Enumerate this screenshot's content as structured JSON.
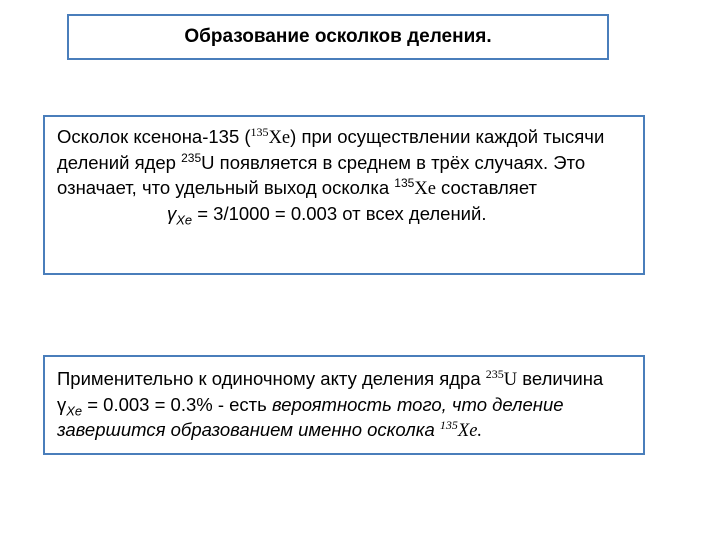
{
  "title": {
    "text": "Образование осколков деления.",
    "fontsize": 19,
    "fontweight": "bold",
    "border_color": "#4a7ebb",
    "background": "#ffffff"
  },
  "box1": {
    "border_color": "#4a7ebb",
    "background": "#ffffff",
    "fontsize": 18.5,
    "text_parts": {
      "p1a": "Осколок ксенона-135 (",
      "p1_sup1": "135",
      "p1_xe": "Xe",
      "p1b": ") при осуществлении каждой тысячи делений ядер ",
      "p1_sup2": "235",
      "p1c": "U появляется в среднем в трёх случаях.  Это означает, что удельный выход осколка ",
      "p1_sup3": "135",
      "p1_xe2": "Xe",
      "p1d": " составляет",
      "formula_gamma": "γ",
      "formula_sub": "Xe",
      "formula_rest": " = 3/1000 = 0.003 от всех делений."
    }
  },
  "box2": {
    "border_color": "#4a7ebb",
    "background": "#ffffff",
    "fontsize": 18.5,
    "text_parts": {
      "p2a": "Применительно к одиночному акту деления ядра ",
      "p2_sup1": "235",
      "p2_u": "U",
      "p2b": " величина γ",
      "p2_sub": "Xe",
      "p2c": " = 0.003 = 0.3% - есть ",
      "p2_ital": "вероятность того, что деление завершится образованием именно осколка ",
      "p2_sup2": "135",
      "p2_xe": "Xe."
    }
  }
}
